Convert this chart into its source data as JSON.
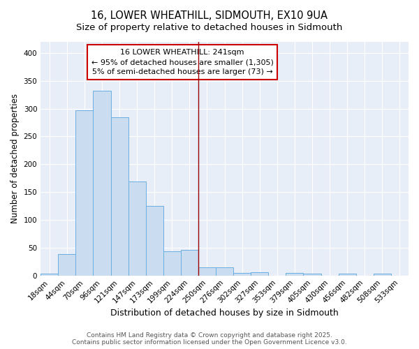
{
  "title": "16, LOWER WHEATHILL, SIDMOUTH, EX10 9UA",
  "subtitle": "Size of property relative to detached houses in Sidmouth",
  "xlabel": "Distribution of detached houses by size in Sidmouth",
  "ylabel": "Number of detached properties",
  "bar_labels": [
    "18sqm",
    "44sqm",
    "70sqm",
    "96sqm",
    "121sqm",
    "147sqm",
    "173sqm",
    "199sqm",
    "224sqm",
    "250sqm",
    "276sqm",
    "302sqm",
    "327sqm",
    "353sqm",
    "379sqm",
    "405sqm",
    "430sqm",
    "456sqm",
    "482sqm",
    "508sqm",
    "533sqm"
  ],
  "bar_values": [
    3,
    39,
    297,
    332,
    284,
    169,
    125,
    43,
    46,
    15,
    15,
    5,
    6,
    0,
    5,
    3,
    0,
    3,
    0,
    3,
    0
  ],
  "bar_color": "#c9dcf0",
  "bar_edge_color": "#6aaee0",
  "vline_color": "#990000",
  "annotation_text": "16 LOWER WHEATHILL: 241sqm\n← 95% of detached houses are smaller (1,305)\n5% of semi-detached houses are larger (73) →",
  "annotation_box_facecolor": "#ffffff",
  "annotation_box_edgecolor": "#cc0000",
  "ylim": [
    0,
    420
  ],
  "yticks": [
    0,
    50,
    100,
    150,
    200,
    250,
    300,
    350,
    400
  ],
  "plot_bg_color": "#e8eef8",
  "fig_bg_color": "#ffffff",
  "grid_color": "#ffffff",
  "footer_text": "Contains HM Land Registry data © Crown copyright and database right 2025.\nContains public sector information licensed under the Open Government Licence v3.0.",
  "title_fontsize": 10.5,
  "subtitle_fontsize": 9.5,
  "xlabel_fontsize": 9,
  "ylabel_fontsize": 8.5,
  "tick_fontsize": 7.5,
  "annotation_fontsize": 8,
  "footer_fontsize": 6.5,
  "vline_bar_index": 9
}
